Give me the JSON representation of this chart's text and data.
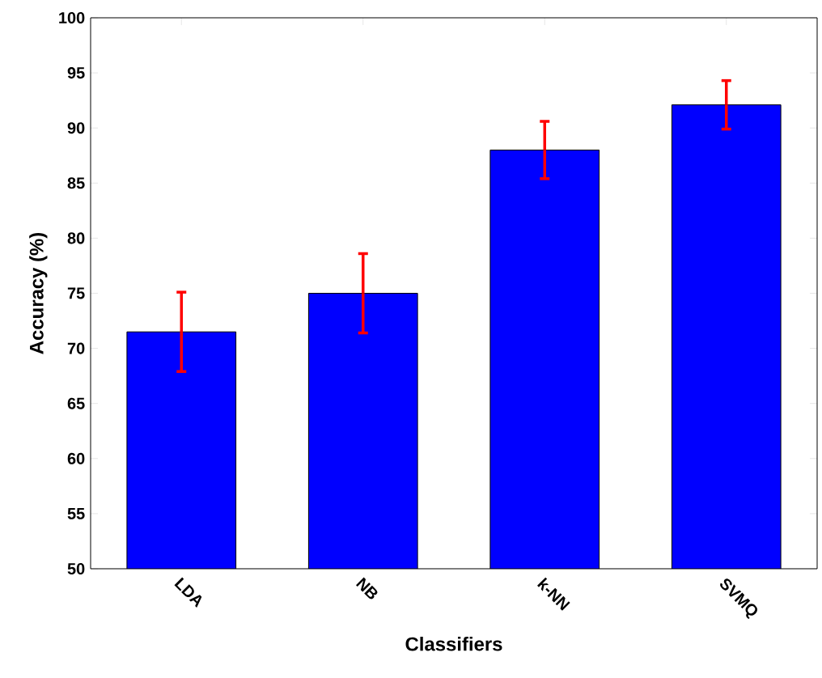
{
  "chart_data": {
    "type": "bar",
    "xlabel": "Classifiers",
    "ylabel": "Accuracy (%)",
    "categories": [
      "LDA",
      "NB",
      "k-NN",
      "SVMQ"
    ],
    "values": [
      71.5,
      75.0,
      88.0,
      92.1
    ],
    "errors": [
      3.6,
      3.6,
      2.6,
      2.2
    ],
    "color": "#0000ff",
    "ylim": [
      50,
      100
    ],
    "yticks": [
      50,
      55,
      60,
      65,
      70,
      75,
      80,
      85,
      90,
      95,
      100
    ],
    "grid": false
  }
}
